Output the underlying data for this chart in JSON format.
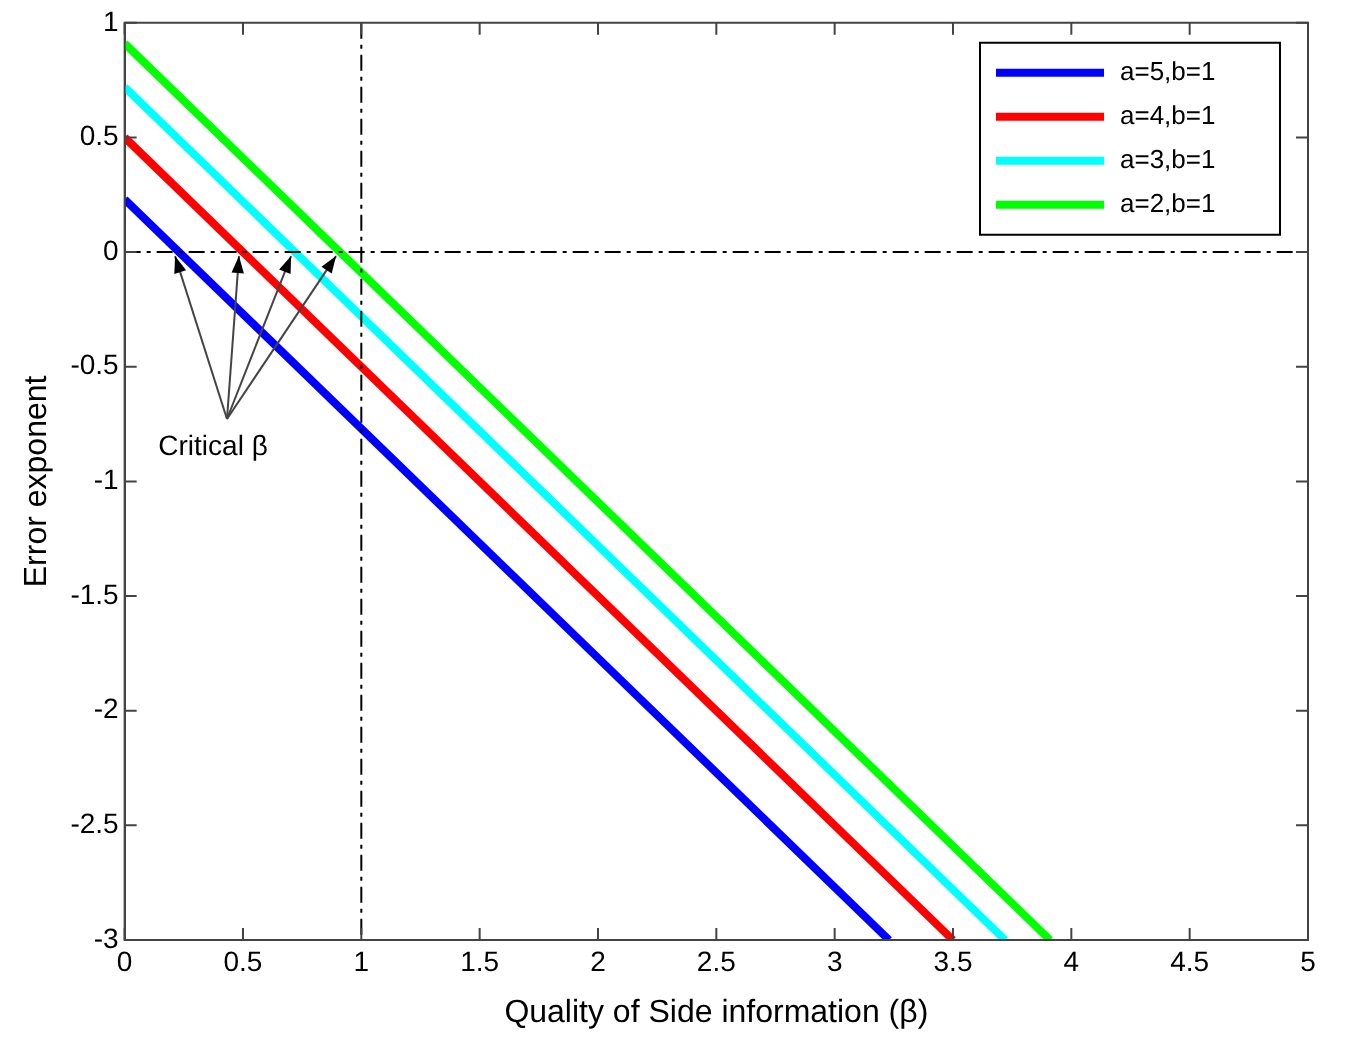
{
  "chart_data": {
    "type": "line",
    "xlabel": "Quality of Side information (β)",
    "ylabel": "Error exponent",
    "series": [
      {
        "name": "a=5,b=1",
        "color": "#0000ff",
        "x": [
          0,
          3.23
        ],
        "values": [
          0.23,
          -3
        ]
      },
      {
        "name": "a=4,b=1",
        "color": "#ff0000",
        "x": [
          0,
          3.5
        ],
        "values": [
          0.5,
          -3
        ]
      },
      {
        "name": "a=3,b=1",
        "color": "#00ffff",
        "x": [
          0,
          3.72
        ],
        "values": [
          0.72,
          -3
        ]
      },
      {
        "name": "a=2,b=1",
        "color": "#00ff00",
        "x": [
          0,
          3.91
        ],
        "values": [
          0.91,
          -3
        ]
      }
    ],
    "xlim": [
      0,
      5
    ],
    "xticks": [
      0,
      0.5,
      1,
      1.5,
      2,
      2.5,
      3,
      3.5,
      4,
      4.5,
      5
    ],
    "ylim": [
      -3,
      1
    ],
    "yticks": [
      -3,
      -2.5,
      -2,
      -1.5,
      -1,
      -0.5,
      0,
      0.5,
      1
    ],
    "ref_lines": [
      {
        "axis": "x",
        "value": 1,
        "line_style": "dashdot",
        "color": "#000000"
      },
      {
        "axis": "y",
        "value": 0,
        "line_style": "dashdot",
        "color": "#000000"
      }
    ],
    "annotations": [
      {
        "text": "Critical β",
        "x": 0.23,
        "y": 0
      }
    ],
    "grid": false,
    "legend": "top right",
    "marker": "none",
    "line_style": "solid"
  }
}
